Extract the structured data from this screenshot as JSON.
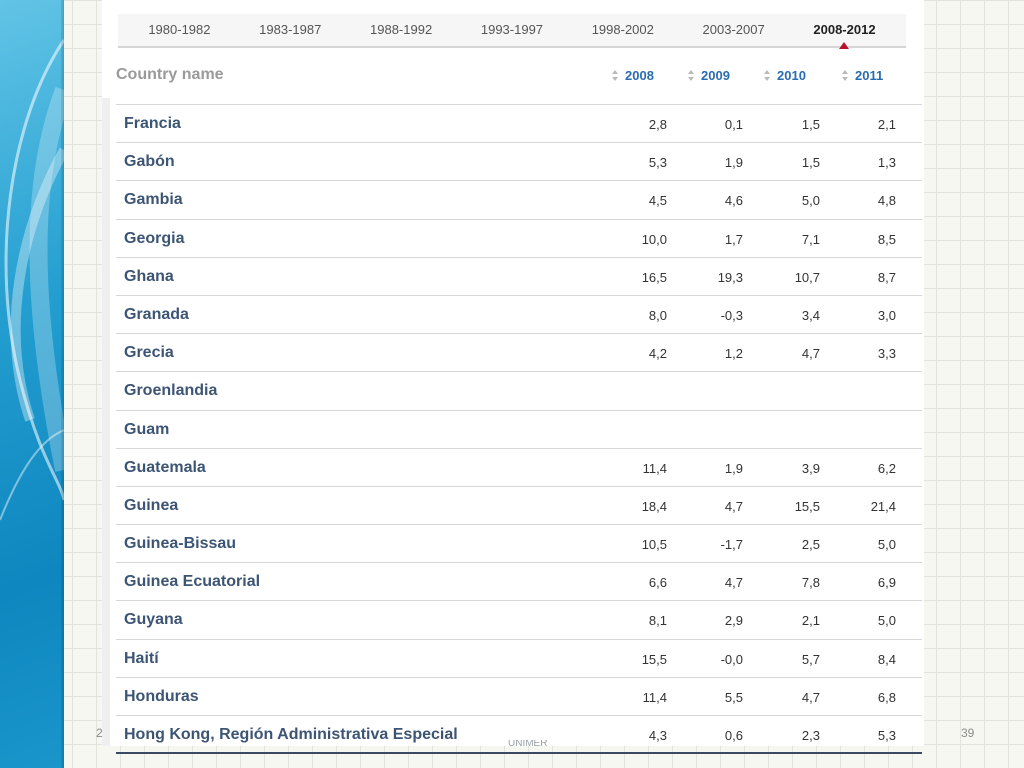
{
  "slide": {
    "page_number": "39",
    "footer_left": "2",
    "footer_center": "UNIMER"
  },
  "period_tabs": [
    {
      "label": "1980-1982"
    },
    {
      "label": "1983-1987"
    },
    {
      "label": "1988-1992"
    },
    {
      "label": "1993-1997"
    },
    {
      "label": "1998-2002"
    },
    {
      "label": "2003-2007"
    },
    {
      "label": "2008-2012",
      "active": true
    }
  ],
  "table": {
    "country_header": "Country name",
    "years": [
      "2008",
      "2009",
      "2010",
      "2011"
    ],
    "rows": [
      {
        "country": "Francia",
        "values": [
          "2,8",
          "0,1",
          "1,5",
          "2,1"
        ]
      },
      {
        "country": "Gabón",
        "values": [
          "5,3",
          "1,9",
          "1,5",
          "1,3"
        ]
      },
      {
        "country": "Gambia",
        "values": [
          "4,5",
          "4,6",
          "5,0",
          "4,8"
        ]
      },
      {
        "country": "Georgia",
        "values": [
          "10,0",
          "1,7",
          "7,1",
          "8,5"
        ]
      },
      {
        "country": "Ghana",
        "values": [
          "16,5",
          "19,3",
          "10,7",
          "8,7"
        ]
      },
      {
        "country": "Granada",
        "values": [
          "8,0",
          "-0,3",
          "3,4",
          "3,0"
        ]
      },
      {
        "country": "Grecia",
        "values": [
          "4,2",
          "1,2",
          "4,7",
          "3,3"
        ]
      },
      {
        "country": "Groenlandia",
        "values": [
          "",
          "",
          "",
          ""
        ]
      },
      {
        "country": "Guam",
        "values": [
          "",
          "",
          "",
          ""
        ]
      },
      {
        "country": "Guatemala",
        "values": [
          "11,4",
          "1,9",
          "3,9",
          "6,2"
        ]
      },
      {
        "country": "Guinea",
        "values": [
          "18,4",
          "4,7",
          "15,5",
          "21,4"
        ]
      },
      {
        "country": "Guinea-Bissau",
        "values": [
          "10,5",
          "-1,7",
          "2,5",
          "5,0"
        ]
      },
      {
        "country": "Guinea Ecuatorial",
        "values": [
          "6,6",
          "4,7",
          "7,8",
          "6,9"
        ]
      },
      {
        "country": "Guyana",
        "values": [
          "8,1",
          "2,9",
          "2,1",
          "5,0"
        ]
      },
      {
        "country": "Haití",
        "values": [
          "15,5",
          "-0,0",
          "5,7",
          "8,4"
        ]
      },
      {
        "country": "Honduras",
        "values": [
          "11,4",
          "5,5",
          "4,7",
          "6,8"
        ]
      },
      {
        "country": "Hong Kong, Región Administrativa Especial",
        "values": [
          "4,3",
          "0,6",
          "2,3",
          "5,3"
        ]
      }
    ]
  },
  "colors": {
    "accent_blue": "#2a6cb0",
    "country_text": "#3d5574",
    "active_marker": "#b5152b"
  },
  "icons": {
    "sort": "sort-icon",
    "active_tab": "triangle-up-icon"
  }
}
